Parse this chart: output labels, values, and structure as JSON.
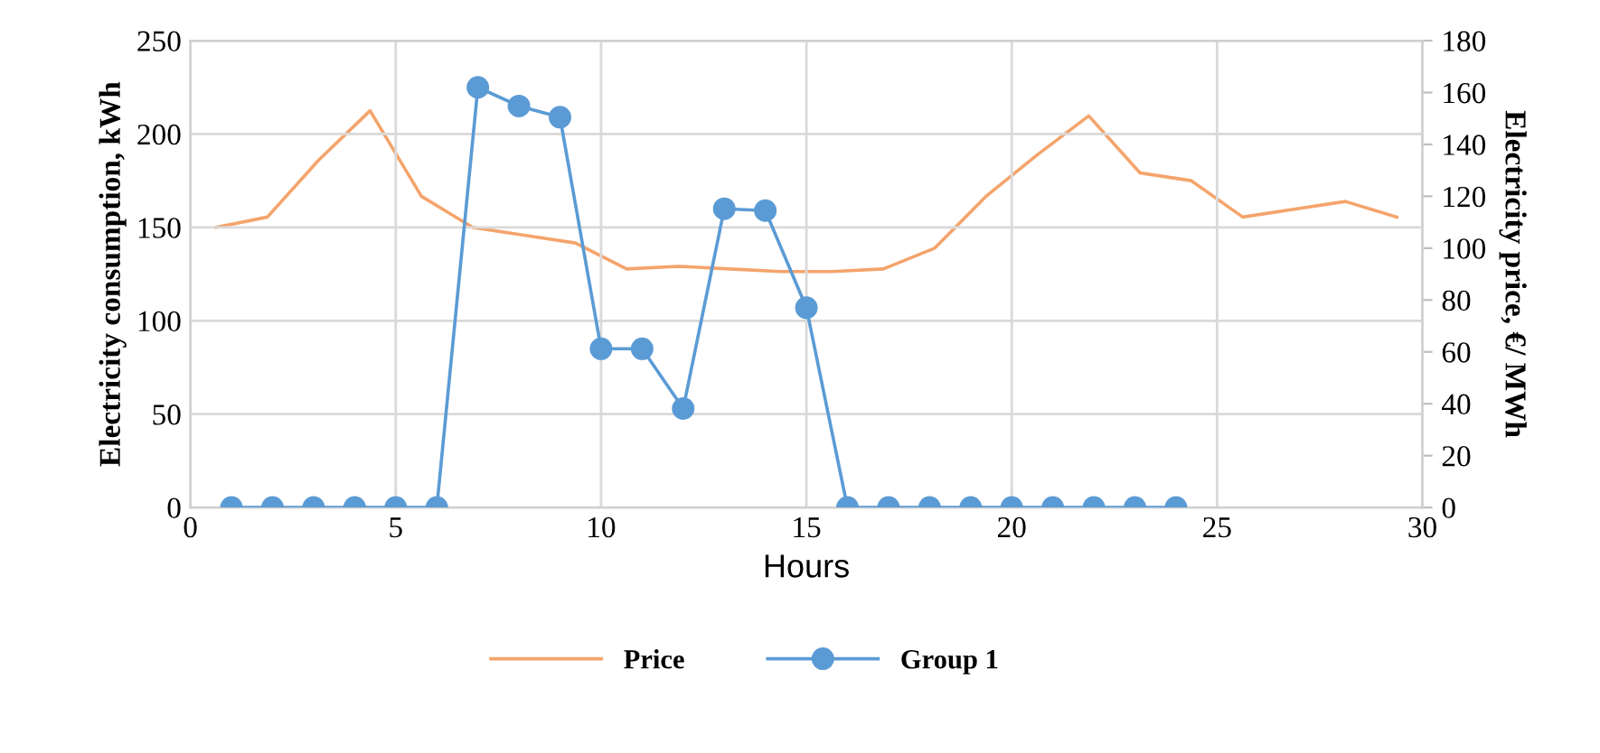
{
  "chart_data": {
    "type": "line",
    "xlabel": "Hours",
    "ylabel": "Electricity consumption, kWh",
    "y2label": "Electricity price, €/ MWh",
    "xlim": [
      0,
      30
    ],
    "xticks": [
      0,
      5,
      10,
      15,
      20,
      25,
      30
    ],
    "ylim": [
      0,
      250
    ],
    "yticks": [
      0,
      50,
      100,
      150,
      200,
      250
    ],
    "y2lim": [
      0,
      180
    ],
    "y2ticks": [
      0,
      20,
      40,
      60,
      80,
      100,
      120,
      140,
      160,
      180
    ],
    "grid": true,
    "legend": "bottom",
    "series": [
      {
        "name": "Price",
        "color": "#f4a46c",
        "axis": "y2",
        "marker": "none",
        "x": [
          0.625,
          1.875,
          3.125,
          4.375,
          5.625,
          6.875,
          8.125,
          9.375,
          10.625,
          11.875,
          13.125,
          14.375,
          15.625,
          16.875,
          18.125,
          19.375,
          20.625,
          21.875,
          23.125,
          24.375,
          25.625,
          26.875,
          28.125,
          29.375
        ],
        "values": [
          108,
          112,
          134,
          153,
          120,
          108,
          105,
          102,
          92,
          93,
          92,
          91,
          91,
          92,
          100,
          120,
          136,
          151,
          129,
          126,
          112,
          115,
          118,
          112
        ]
      },
      {
        "name": "Group 1",
        "color": "#5b9bd5",
        "marker": "circle",
        "x": [
          1,
          2,
          3,
          4,
          5,
          6,
          7,
          8,
          9,
          10,
          11,
          12,
          13,
          14,
          15,
          16,
          17,
          18,
          19,
          20,
          21,
          22,
          23,
          24
        ],
        "values": [
          0,
          0,
          0,
          0,
          0,
          0,
          225,
          215,
          209,
          85,
          85,
          53,
          160,
          159,
          107,
          0,
          0,
          0,
          0,
          0,
          0,
          0,
          0,
          0
        ]
      }
    ]
  }
}
